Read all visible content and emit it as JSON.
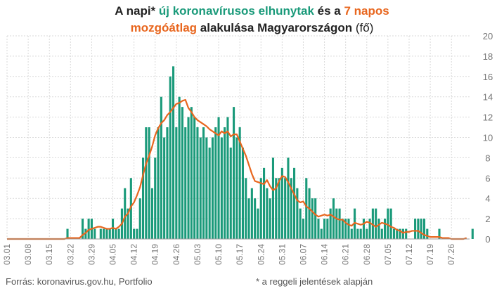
{
  "title": {
    "line1": [
      {
        "text": "A napi* ",
        "style": "plain"
      },
      {
        "text": "új koronavírusos elhunytak",
        "style": "green"
      },
      {
        "text": " és a ",
        "style": "plain"
      },
      {
        "text": "7 napos",
        "style": "orange"
      }
    ],
    "line2": [
      {
        "text": "mozgóátlag",
        "style": "orange"
      },
      {
        "text": " alakulása Magyarországon ",
        "style": "plain"
      },
      {
        "text": "(fő)",
        "style": "normal"
      }
    ]
  },
  "source": "Forrás: koronavirus.gov.hu, Portfolio",
  "footnote": "* a reggeli jelentések alapján",
  "colors": {
    "bar": "#1a9a7a",
    "line": "#e8661e",
    "grid": "#d9d9d9",
    "tick_text": "#777777"
  },
  "chart_data": {
    "type": "bar",
    "grid": true,
    "y_axis_side": "right",
    "ylim": [
      0,
      20
    ],
    "yticks": [
      "0",
      "2",
      "4",
      "6",
      "8",
      "10",
      "12",
      "14",
      "16",
      "18",
      "20"
    ],
    "x_start": "03.01",
    "x_end": "08.01",
    "xticks": [
      "03.01",
      "03.08",
      "03.15",
      "03.22",
      "03.29",
      "04.05",
      "04.12",
      "04.19",
      "04.26",
      "05.03",
      "05.10",
      "05.17",
      "05.24",
      "05.31",
      "06.07",
      "06.14",
      "06.21",
      "06.28",
      "07.05",
      "07.12",
      "07.19",
      "07.26"
    ],
    "series": [
      {
        "type": "bar",
        "values": [
          0,
          0,
          0,
          0,
          0,
          0,
          0,
          0,
          0,
          0,
          0,
          0,
          0,
          0,
          0,
          0,
          0,
          0,
          0,
          0,
          1,
          0,
          0,
          0,
          0,
          2,
          1,
          2,
          2,
          1,
          0,
          1,
          1,
          1,
          1,
          2,
          1,
          1,
          3,
          5,
          3,
          6,
          1,
          1,
          4,
          8,
          11,
          11,
          5,
          8,
          11,
          14,
          10,
          11,
          16,
          17,
          11,
          14,
          13,
          11,
          12,
          13,
          12,
          11,
          10,
          11,
          10,
          9,
          10,
          11,
          12,
          10,
          11,
          12,
          9,
          13,
          10,
          11,
          9,
          6,
          4,
          5,
          4,
          3,
          6,
          7,
          5,
          4,
          8,
          6,
          6,
          7,
          6,
          8,
          6,
          7,
          5,
          3,
          2,
          6,
          5,
          4,
          4,
          2,
          1,
          2,
          2,
          3,
          4,
          3,
          3,
          2,
          2,
          2,
          1,
          3,
          1,
          1,
          2,
          1,
          2,
          3,
          3,
          2,
          1,
          2,
          3,
          3,
          1,
          1,
          1,
          1,
          1,
          0,
          0,
          2,
          2,
          2,
          2,
          1,
          0,
          0,
          0,
          1,
          0,
          0,
          0,
          0,
          0,
          0,
          0,
          0,
          0,
          0,
          1
        ]
      },
      {
        "type": "line",
        "values": [
          0,
          0,
          0,
          0,
          0,
          0,
          0,
          0,
          0,
          0,
          0,
          0,
          0,
          0,
          0,
          0,
          0,
          0,
          0,
          0,
          0.1,
          0.1,
          0.1,
          0.1,
          0.1,
          0.4,
          0.6,
          0.9,
          1.0,
          1.1,
          1.2,
          1.2,
          1.1,
          1.0,
          1.0,
          1.1,
          1.0,
          1.2,
          1.5,
          2.2,
          2.5,
          3.2,
          3.6,
          4.3,
          5.1,
          6.3,
          7.4,
          8.2,
          9.1,
          10.2,
          10.9,
          11.4,
          11.7,
          12.2,
          12.5,
          12.9,
          13.3,
          13.4,
          13.6,
          13.7,
          12.9,
          12.5,
          12.0,
          11.7,
          11.5,
          11.3,
          11.1,
          10.8,
          10.6,
          10.4,
          10.2,
          10.6,
          10.4,
          10.6,
          10.1,
          10.3,
          10.3,
          9.6,
          8.9,
          8.2,
          7.3,
          6.4,
          5.7,
          5.6,
          5.5,
          5.4,
          5.8,
          5.2,
          4.8,
          5.0,
          5.7,
          6.2,
          6.1,
          5.6,
          5.0,
          4.4,
          3.8,
          3.6,
          3.7,
          3.2,
          3.0,
          2.7,
          2.4,
          2.2,
          2.3,
          2.4,
          2.3,
          2.4,
          2.2,
          2.0,
          1.9,
          1.9,
          1.6,
          1.4,
          1.3,
          1.6,
          1.5,
          1.4,
          1.5,
          1.7,
          1.6,
          1.4,
          1.2,
          1.4,
          1.6,
          1.5,
          1.4,
          1.2,
          1.1,
          0.9,
          0.8,
          0.6,
          0.7,
          0.7,
          0.8,
          0.8,
          0.8,
          0.6,
          0.4,
          0.3,
          0.2,
          0.2,
          0.2,
          0.2,
          0.1,
          0.1,
          0.1,
          0,
          0,
          0,
          0,
          0,
          0.1
        ]
      }
    ]
  }
}
